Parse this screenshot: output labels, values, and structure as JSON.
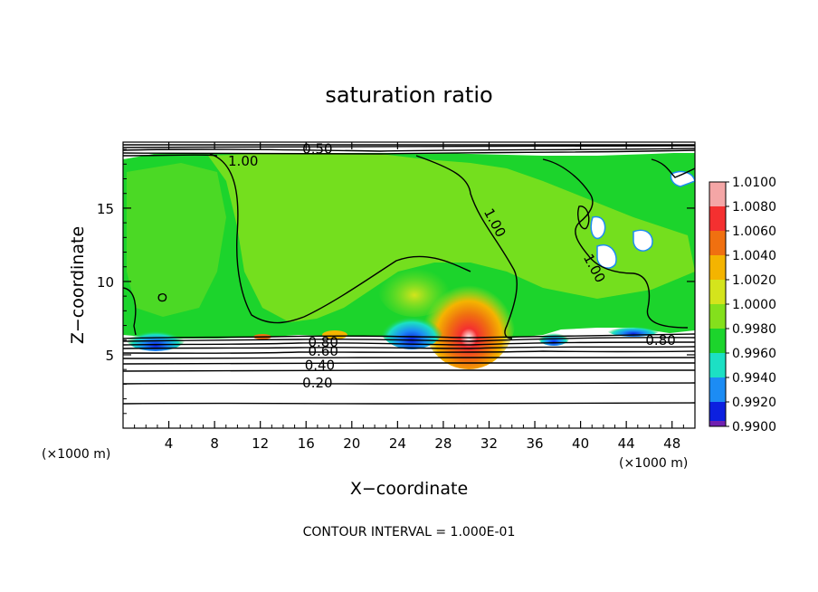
{
  "chart_data": {
    "type": "heatmap",
    "title": "saturation ratio",
    "xlabel": "X−coordinate",
    "ylabel": "Z−coordinate",
    "x_unit_left": "(×1000 m)",
    "x_unit_right": "(×1000 m)",
    "footer": "CONTOUR INTERVAL = 1.000E-01",
    "xlim": [
      0,
      50
    ],
    "ylim": [
      0,
      19.5
    ],
    "x_ticks": [
      {
        "v": 4,
        "label": "4"
      },
      {
        "v": 8,
        "label": "8"
      },
      {
        "v": 12,
        "label": "12"
      },
      {
        "v": 16,
        "label": "16"
      },
      {
        "v": 20,
        "label": "20"
      },
      {
        "v": 24,
        "label": "24"
      },
      {
        "v": 28,
        "label": "28"
      },
      {
        "v": 32,
        "label": "32"
      },
      {
        "v": 36,
        "label": "36"
      },
      {
        "v": 40,
        "label": "40"
      },
      {
        "v": 44,
        "label": "44"
      },
      {
        "v": 48,
        "label": "48"
      }
    ],
    "y_ticks": [
      {
        "v": 5,
        "label": "5"
      },
      {
        "v": 10,
        "label": "10"
      },
      {
        "v": 15,
        "label": "15"
      }
    ],
    "colorbar": {
      "levels": [
        {
          "label": "1.0100",
          "color": "#f4a6a6"
        },
        {
          "label": "1.0080",
          "color": "#f43030"
        },
        {
          "label": "1.0060",
          "color": "#f07010"
        },
        {
          "label": "1.0040",
          "color": "#f4b400"
        },
        {
          "label": "1.0020",
          "color": "#d4e41c"
        },
        {
          "label": "1.0000",
          "color": "#84e01c"
        },
        {
          "label": "0.9980",
          "color": "#1cd42c"
        },
        {
          "label": "0.9960",
          "color": "#1ce0c4"
        },
        {
          "label": "0.9940",
          "color": "#1c8cf4"
        },
        {
          "label": "0.9920",
          "color": "#0c20e0"
        },
        {
          "label": "0.9900",
          "color": "#7020b0"
        }
      ]
    },
    "contour_labels": [
      {
        "text": "0.50",
        "x": 17.0,
        "y": 19.05
      },
      {
        "text": "1.00",
        "x": 10.5,
        "y": 18.2
      },
      {
        "text": "1.00",
        "x": 32.5,
        "y": 14.0,
        "rotate": 62
      },
      {
        "text": "1.00",
        "x": 41.2,
        "y": 10.9,
        "rotate": 62
      },
      {
        "text": "0.80",
        "x": 47.0,
        "y": 6.0
      },
      {
        "text": "0.80",
        "x": 17.5,
        "y": 5.85
      },
      {
        "text": "0.60",
        "x": 17.5,
        "y": 5.25
      },
      {
        "text": "0.40",
        "x": 17.2,
        "y": 4.3
      },
      {
        "text": "0.20",
        "x": 17.0,
        "y": 3.1
      }
    ]
  }
}
